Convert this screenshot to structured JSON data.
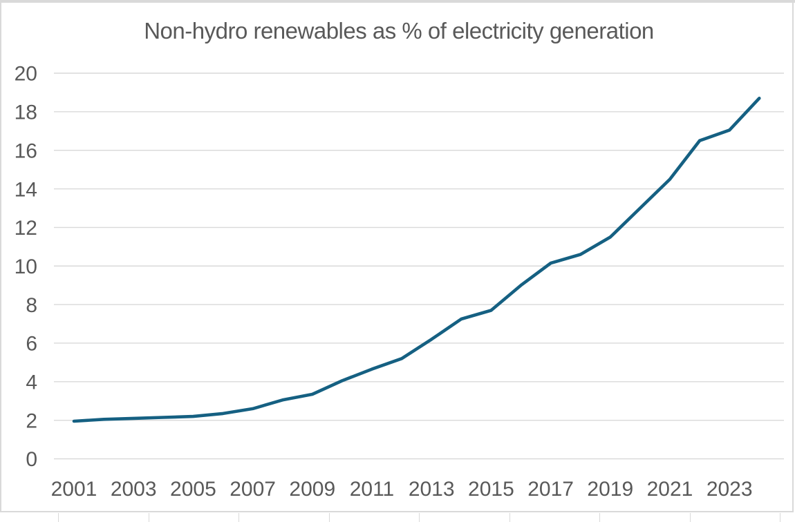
{
  "chart_data": {
    "type": "line",
    "title": "Non-hydro renewables as % of electricity generation",
    "x": [
      2001,
      2002,
      2003,
      2004,
      2005,
      2006,
      2007,
      2008,
      2009,
      2010,
      2011,
      2012,
      2013,
      2014,
      2015,
      2016,
      2017,
      2018,
      2019,
      2020,
      2021,
      2022,
      2023,
      2024
    ],
    "values": [
      1.95,
      2.05,
      2.1,
      2.15,
      2.2,
      2.35,
      2.6,
      3.05,
      3.35,
      4.05,
      4.65,
      5.2,
      6.2,
      7.25,
      7.7,
      9.0,
      10.15,
      10.6,
      11.5,
      13.0,
      14.5,
      16.5,
      17.05,
      18.7
    ],
    "xlabel": "",
    "ylabel": "",
    "ylim": [
      0,
      20
    ],
    "yticks": [
      0,
      2,
      4,
      6,
      8,
      10,
      12,
      14,
      16,
      18,
      20
    ],
    "xticks": [
      2001,
      2003,
      2005,
      2007,
      2009,
      2011,
      2013,
      2015,
      2017,
      2019,
      2021,
      2023
    ],
    "grid": "horizontal",
    "legend": "none",
    "colors": {
      "line": "#156082",
      "text": "#595959",
      "gridline": "#d9d9d9",
      "frame": "#d9d9d9"
    }
  }
}
